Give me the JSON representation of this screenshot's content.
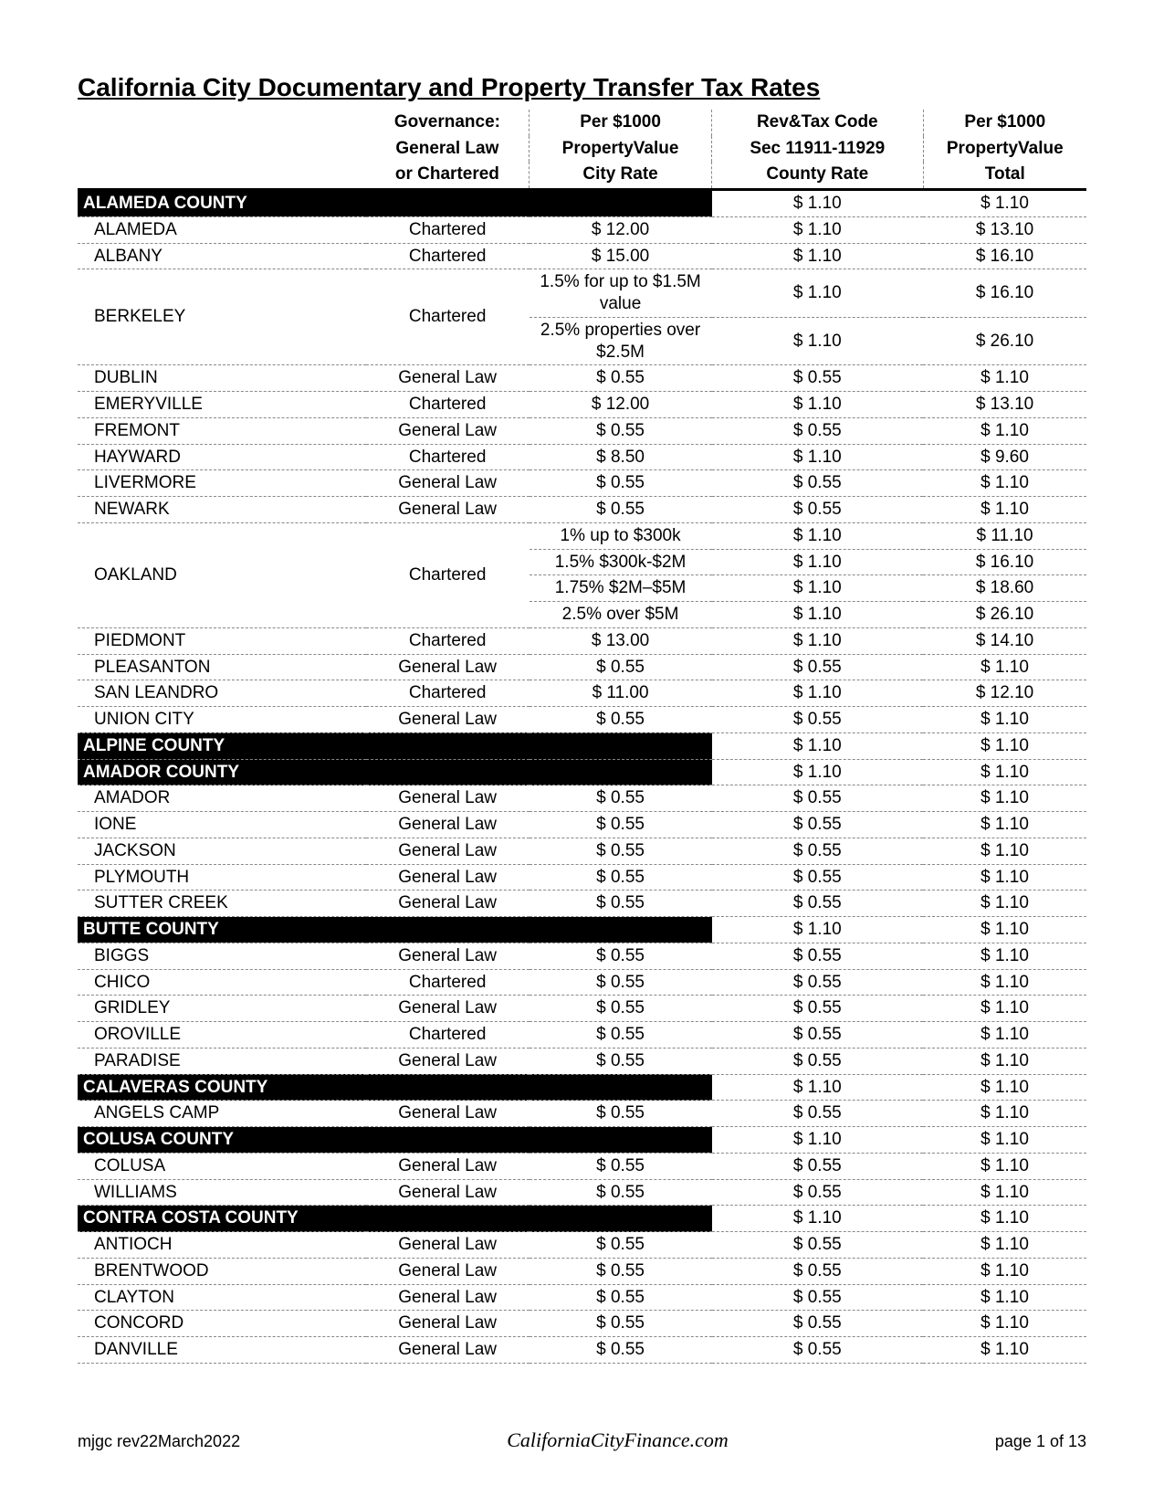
{
  "title": "California City Documentary and Property Transfer Tax Rates",
  "header": {
    "gov": [
      "Governance:",
      "General Law",
      "or Chartered"
    ],
    "city": [
      "Per $1000",
      "PropertyValue",
      "City Rate"
    ],
    "cnty": [
      "Rev&Tax Code",
      "Sec 11911-11929",
      "County Rate"
    ],
    "tot": [
      "Per $1000",
      "PropertyValue",
      "Total"
    ]
  },
  "colors": {
    "countyBg": "#000000",
    "countyFg": "#ffffff",
    "ruleDash": "#888888",
    "text": "#000000",
    "background": "#ffffff"
  },
  "rows": [
    {
      "type": "county",
      "name": "ALAMEDA COUNTY",
      "cnty": "$ 1.10",
      "tot": "$ 1.10"
    },
    {
      "type": "city",
      "name": "ALAMEDA",
      "gov": "Chartered",
      "city": "$ 12.00",
      "cnty": "$ 1.10",
      "tot": "$ 13.10"
    },
    {
      "type": "city",
      "name": "ALBANY",
      "gov": "Chartered",
      "city": "$ 15.00",
      "cnty": "$ 1.10",
      "tot": "$ 16.10"
    },
    {
      "type": "city",
      "name": "BERKELEY",
      "gov": "Chartered",
      "city": "1.5% for up to $1.5M value",
      "cnty": "$ 1.10",
      "tot": "$ 16.10",
      "nameRowspan": 2,
      "govRowspan": 2
    },
    {
      "type": "sub",
      "city": "2.5% properties over $2.5M",
      "cnty": "$ 1.10",
      "tot": "$ 26.10"
    },
    {
      "type": "city",
      "name": "DUBLIN",
      "gov": "General Law",
      "city": "$ 0.55",
      "cnty": "$ 0.55",
      "tot": "$ 1.10"
    },
    {
      "type": "city",
      "name": "EMERYVILLE",
      "gov": "Chartered",
      "city": "$ 12.00",
      "cnty": "$ 1.10",
      "tot": "$ 13.10"
    },
    {
      "type": "city",
      "name": "FREMONT",
      "gov": "General Law",
      "city": "$ 0.55",
      "cnty": "$ 0.55",
      "tot": "$ 1.10"
    },
    {
      "type": "city",
      "name": "HAYWARD",
      "gov": "Chartered",
      "city": "$ 8.50",
      "cnty": "$ 1.10",
      "tot": "$ 9.60"
    },
    {
      "type": "city",
      "name": "LIVERMORE",
      "gov": "General Law",
      "city": "$ 0.55",
      "cnty": "$ 0.55",
      "tot": "$ 1.10"
    },
    {
      "type": "city",
      "name": "NEWARK",
      "gov": "General Law",
      "city": "$ 0.55",
      "cnty": "$ 0.55",
      "tot": "$ 1.10"
    },
    {
      "type": "city",
      "name": "OAKLAND",
      "gov": "Chartered",
      "city": "1% up to $300k",
      "cnty": "$ 1.10",
      "tot": "$ 11.10",
      "nameRowspan": 4,
      "govRowspan": 4
    },
    {
      "type": "sub",
      "city": "1.5% $300k-$2M",
      "cnty": "$ 1.10",
      "tot": "$ 16.10"
    },
    {
      "type": "sub",
      "city": "1.75% $2M–$5M",
      "cnty": "$ 1.10",
      "tot": "$ 18.60"
    },
    {
      "type": "sub",
      "city": "2.5% over $5M",
      "cnty": "$ 1.10",
      "tot": "$ 26.10"
    },
    {
      "type": "city",
      "name": "PIEDMONT",
      "gov": "Chartered",
      "city": "$ 13.00",
      "cnty": "$ 1.10",
      "tot": "$ 14.10"
    },
    {
      "type": "city",
      "name": "PLEASANTON",
      "gov": "General Law",
      "city": "$ 0.55",
      "cnty": "$ 0.55",
      "tot": "$ 1.10"
    },
    {
      "type": "city",
      "name": "SAN LEANDRO",
      "gov": "Chartered",
      "city": "$ 11.00",
      "cnty": "$ 1.10",
      "tot": "$ 12.10"
    },
    {
      "type": "city",
      "name": "UNION CITY",
      "gov": "General Law",
      "city": "$ 0.55",
      "cnty": "$ 0.55",
      "tot": "$ 1.10"
    },
    {
      "type": "county",
      "name": "ALPINE COUNTY",
      "cnty": "$ 1.10",
      "tot": "$ 1.10"
    },
    {
      "type": "county",
      "name": "AMADOR COUNTY",
      "cnty": "$ 1.10",
      "tot": "$ 1.10"
    },
    {
      "type": "city",
      "name": "AMADOR",
      "gov": "General Law",
      "city": "$ 0.55",
      "cnty": "$ 0.55",
      "tot": "$ 1.10"
    },
    {
      "type": "city",
      "name": "IONE",
      "gov": "General Law",
      "city": "$ 0.55",
      "cnty": "$ 0.55",
      "tot": "$ 1.10"
    },
    {
      "type": "city",
      "name": "JACKSON",
      "gov": "General Law",
      "city": "$ 0.55",
      "cnty": "$ 0.55",
      "tot": "$ 1.10"
    },
    {
      "type": "city",
      "name": "PLYMOUTH",
      "gov": "General Law",
      "city": "$ 0.55",
      "cnty": "$ 0.55",
      "tot": "$ 1.10"
    },
    {
      "type": "city",
      "name": "SUTTER CREEK",
      "gov": "General Law",
      "city": "$ 0.55",
      "cnty": "$ 0.55",
      "tot": "$ 1.10"
    },
    {
      "type": "county",
      "name": "BUTTE COUNTY",
      "cnty": "$ 1.10",
      "tot": "$ 1.10"
    },
    {
      "type": "city",
      "name": "BIGGS",
      "gov": "General Law",
      "city": "$ 0.55",
      "cnty": "$ 0.55",
      "tot": "$ 1.10"
    },
    {
      "type": "city",
      "name": "CHICO",
      "gov": "Chartered",
      "city": "$ 0.55",
      "cnty": "$ 0.55",
      "tot": "$ 1.10"
    },
    {
      "type": "city",
      "name": "GRIDLEY",
      "gov": "General Law",
      "city": "$ 0.55",
      "cnty": "$ 0.55",
      "tot": "$ 1.10"
    },
    {
      "type": "city",
      "name": "OROVILLE",
      "gov": "Chartered",
      "city": "$ 0.55",
      "cnty": "$ 0.55",
      "tot": "$ 1.10"
    },
    {
      "type": "city",
      "name": "PARADISE",
      "gov": "General Law",
      "city": "$ 0.55",
      "cnty": "$ 0.55",
      "tot": "$ 1.10"
    },
    {
      "type": "county",
      "name": "CALAVERAS COUNTY",
      "cnty": "$ 1.10",
      "tot": "$ 1.10"
    },
    {
      "type": "city",
      "name": "ANGELS CAMP",
      "gov": "General Law",
      "city": "$ 0.55",
      "cnty": "$ 0.55",
      "tot": "$ 1.10"
    },
    {
      "type": "county",
      "name": "COLUSA COUNTY",
      "cnty": "$ 1.10",
      "tot": "$ 1.10"
    },
    {
      "type": "city",
      "name": "COLUSA",
      "gov": "General Law",
      "city": "$ 0.55",
      "cnty": "$ 0.55",
      "tot": "$ 1.10"
    },
    {
      "type": "city",
      "name": "WILLIAMS",
      "gov": "General Law",
      "city": "$ 0.55",
      "cnty": "$ 0.55",
      "tot": "$ 1.10"
    },
    {
      "type": "county",
      "name": "CONTRA COSTA COUNTY",
      "cnty": "$ 1.10",
      "tot": "$ 1.10"
    },
    {
      "type": "city",
      "name": "ANTIOCH",
      "gov": "General Law",
      "city": "$ 0.55",
      "cnty": "$ 0.55",
      "tot": "$ 1.10"
    },
    {
      "type": "city",
      "name": "BRENTWOOD",
      "gov": "General Law",
      "city": "$ 0.55",
      "cnty": "$ 0.55",
      "tot": "$ 1.10"
    },
    {
      "type": "city",
      "name": "CLAYTON",
      "gov": "General Law",
      "city": "$ 0.55",
      "cnty": "$ 0.55",
      "tot": "$ 1.10"
    },
    {
      "type": "city",
      "name": "CONCORD",
      "gov": "General Law",
      "city": "$ 0.55",
      "cnty": "$ 0.55",
      "tot": "$ 1.10"
    },
    {
      "type": "city",
      "name": "DANVILLE",
      "gov": "General Law",
      "city": "$ 0.55",
      "cnty": "$ 0.55",
      "tot": "$ 1.10"
    }
  ],
  "footer": {
    "left": "mjgc rev22March2022",
    "center": "CaliforniaCityFinance.com",
    "right": "page 1 of 13"
  }
}
